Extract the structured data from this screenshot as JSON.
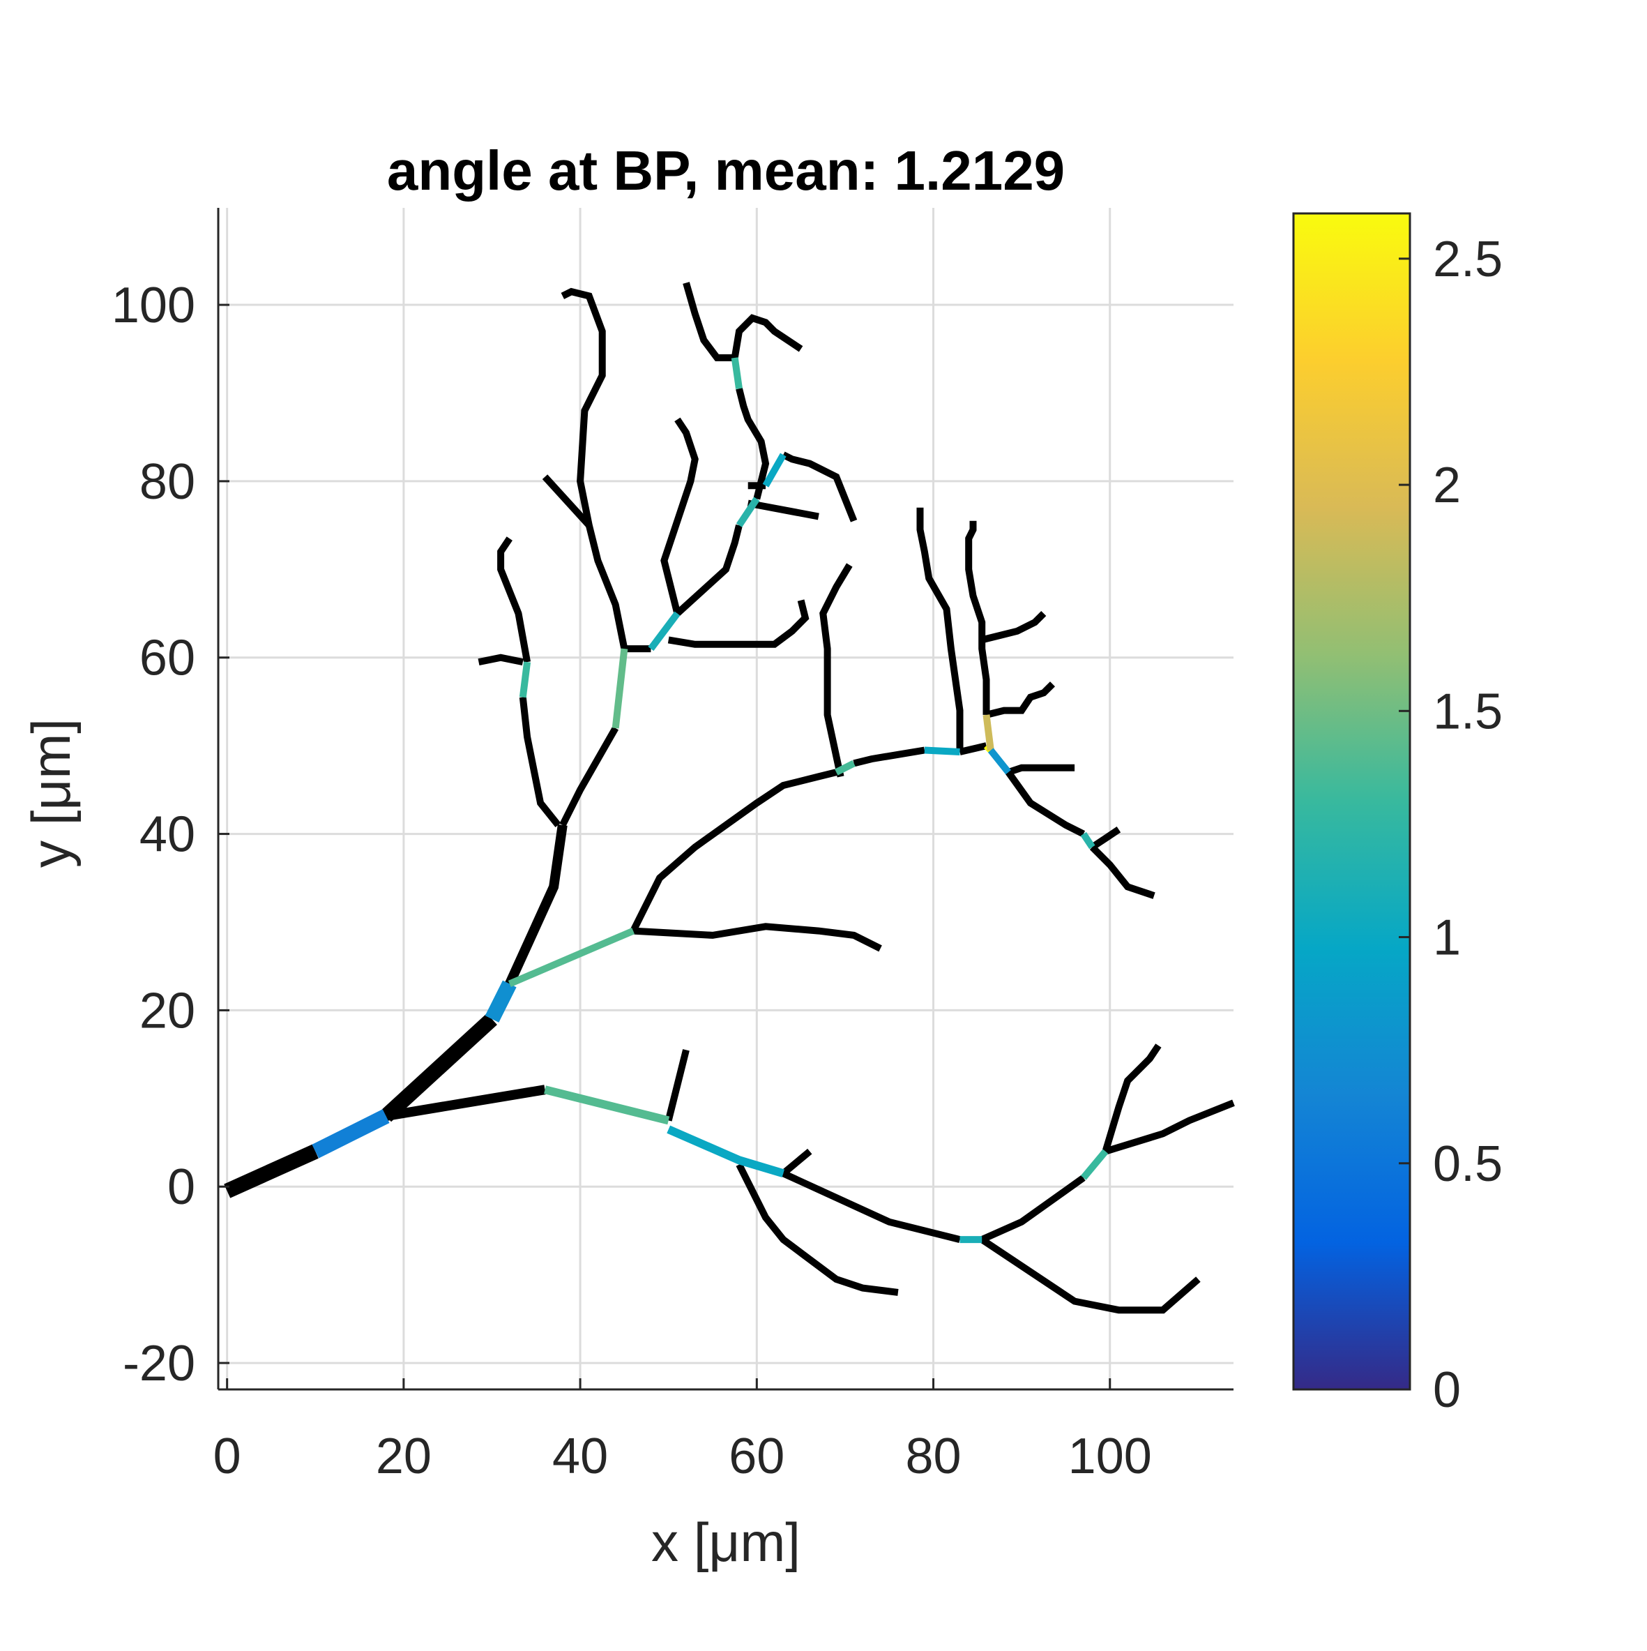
{
  "chart_data": {
    "type": "line",
    "title": "angle at BP, mean: 1.2129",
    "xlabel": "x [μm]",
    "ylabel": "y [μm]",
    "xlim": [
      -1,
      114
    ],
    "ylim": [
      -23,
      111
    ],
    "xticks": [
      0,
      20,
      40,
      60,
      80,
      100
    ],
    "yticks": [
      -20,
      0,
      20,
      40,
      60,
      80,
      100
    ],
    "xtick_labels": [
      "0",
      "20",
      "40",
      "60",
      "80",
      "100"
    ],
    "ytick_labels": [
      "-20",
      "0",
      "20",
      "40",
      "60",
      "80",
      "100"
    ],
    "grid": true,
    "colorbar": {
      "range": [
        0,
        2.6
      ],
      "ticks": [
        0,
        0.5,
        1,
        1.5,
        2,
        2.5
      ],
      "tick_labels": [
        "0",
        "0.5",
        "1",
        "1.5",
        "2",
        "2.5"
      ],
      "colormap": "parula",
      "stops": [
        "#352a87",
        "#0363e1",
        "#1485d4",
        "#06a7c6",
        "#38b99e",
        "#92bf73",
        "#d9ba56",
        "#fcce2e",
        "#f9fb0e"
      ]
    },
    "segments": [
      {
        "points": [
          [
            0,
            -0.5
          ],
          [
            10,
            4
          ]
        ],
        "width": 22,
        "value": null
      },
      {
        "points": [
          [
            10,
            4
          ],
          [
            18,
            8
          ]
        ],
        "width": 22,
        "value": 0.6
      },
      {
        "points": [
          [
            18,
            8
          ],
          [
            30,
            19
          ]
        ],
        "width": 22,
        "value": null
      },
      {
        "points": [
          [
            30,
            19
          ],
          [
            32,
            23
          ]
        ],
        "width": 22,
        "value": 0.75
      },
      {
        "points": [
          [
            32,
            23
          ],
          [
            37,
            34
          ],
          [
            38,
            41
          ]
        ],
        "width": 14,
        "value": null
      },
      {
        "points": [
          [
            38,
            41
          ],
          [
            40,
            45
          ],
          [
            44,
            52
          ]
        ],
        "width": 10,
        "value": null
      },
      {
        "points": [
          [
            44,
            52
          ],
          [
            45,
            61
          ]
        ],
        "width": 10,
        "value": 1.45
      },
      {
        "points": [
          [
            45,
            61
          ],
          [
            44,
            66
          ],
          [
            42,
            71
          ],
          [
            41,
            75
          ]
        ],
        "width": 10,
        "value": null
      },
      {
        "points": [
          [
            41,
            75
          ],
          [
            40,
            80
          ],
          [
            40.5,
            88
          ],
          [
            42.5,
            92
          ],
          [
            42.5,
            97
          ],
          [
            41,
            101
          ],
          [
            39,
            101.5
          ],
          [
            38,
            101
          ]
        ],
        "width": 10,
        "value": null
      },
      {
        "points": [
          [
            41,
            75
          ],
          [
            36,
            80.5
          ]
        ],
        "width": 10,
        "value": null
      },
      {
        "points": [
          [
            37.5,
            41
          ],
          [
            35.5,
            43.5
          ],
          [
            34,
            51
          ],
          [
            33.5,
            55.5
          ]
        ],
        "width": 10,
        "value": null
      },
      {
        "points": [
          [
            33.5,
            55.5
          ],
          [
            34,
            59.5
          ]
        ],
        "width": 10,
        "value": 1.3
      },
      {
        "points": [
          [
            34,
            59.5
          ],
          [
            33,
            65
          ],
          [
            31,
            70
          ],
          [
            31,
            72
          ],
          [
            32,
            73.5
          ]
        ],
        "width": 10,
        "value": null
      },
      {
        "points": [
          [
            33.5,
            59.5
          ],
          [
            31,
            60
          ],
          [
            28.5,
            59.5
          ]
        ],
        "width": 10,
        "value": null
      },
      {
        "points": [
          [
            45,
            61
          ],
          [
            48,
            61
          ]
        ],
        "width": 10,
        "value": null
      },
      {
        "points": [
          [
            48,
            61
          ],
          [
            51,
            65
          ]
        ],
        "width": 10,
        "value": 1.1
      },
      {
        "points": [
          [
            51,
            65
          ],
          [
            49.5,
            71
          ],
          [
            51,
            75.5
          ],
          [
            52.5,
            80
          ],
          [
            53,
            82.5
          ],
          [
            52,
            85.5
          ],
          [
            51,
            87
          ]
        ],
        "width": 10,
        "value": null
      },
      {
        "points": [
          [
            51,
            65
          ],
          [
            56.5,
            70
          ],
          [
            57.5,
            73
          ],
          [
            58,
            75
          ]
        ],
        "width": 10,
        "value": null
      },
      {
        "points": [
          [
            58,
            75
          ],
          [
            60,
            78
          ]
        ],
        "width": 10,
        "value": 1.2
      },
      {
        "points": [
          [
            60,
            78
          ],
          [
            61,
            82
          ],
          [
            60.5,
            84.5
          ],
          [
            59,
            87
          ],
          [
            58.5,
            88.5
          ],
          [
            58,
            90.5
          ]
        ],
        "width": 10,
        "value": null
      },
      {
        "points": [
          [
            58,
            90.5
          ],
          [
            57.5,
            94
          ]
        ],
        "width": 10,
        "value": 1.3
      },
      {
        "points": [
          [
            57.5,
            94
          ],
          [
            55.5,
            94
          ],
          [
            54,
            96
          ],
          [
            53,
            99
          ],
          [
            52,
            102.5
          ]
        ],
        "width": 10,
        "value": null
      },
      {
        "points": [
          [
            57.5,
            94
          ],
          [
            58,
            97
          ],
          [
            59.5,
            98.5
          ],
          [
            61,
            98
          ],
          [
            62,
            97
          ],
          [
            65,
            95
          ]
        ],
        "width": 10,
        "value": null
      },
      {
        "points": [
          [
            59,
            79.5
          ],
          [
            61,
            79.5
          ]
        ],
        "width": 10,
        "value": null
      },
      {
        "points": [
          [
            61,
            79.5
          ],
          [
            63,
            83
          ]
        ],
        "width": 10,
        "value": 1.0
      },
      {
        "points": [
          [
            63,
            83
          ],
          [
            64,
            82.5
          ],
          [
            66,
            82
          ],
          [
            69,
            80.5
          ],
          [
            71,
            75.5
          ]
        ],
        "width": 10,
        "value": null
      },
      {
        "points": [
          [
            59,
            77.5
          ],
          [
            67,
            76
          ]
        ],
        "width": 10,
        "value": null
      },
      {
        "points": [
          [
            50,
            62
          ],
          [
            53,
            61.5
          ],
          [
            57,
            61.5
          ],
          [
            62,
            61.5
          ],
          [
            64,
            63
          ],
          [
            65.5,
            64.5
          ],
          [
            65,
            66.5
          ]
        ],
        "width": 10,
        "value": null
      },
      {
        "points": [
          [
            32,
            23
          ],
          [
            46,
            29
          ]
        ],
        "width": 10,
        "value": 1.4
      },
      {
        "points": [
          [
            46,
            29
          ],
          [
            55,
            28.5
          ],
          [
            61,
            29.5
          ],
          [
            67,
            29
          ],
          [
            71,
            28.5
          ],
          [
            74,
            27
          ]
        ],
        "width": 10,
        "value": null
      },
      {
        "points": [
          [
            46,
            29
          ],
          [
            49,
            35
          ],
          [
            53,
            38.5
          ],
          [
            60,
            43.5
          ],
          [
            63,
            45.5
          ],
          [
            67,
            46.5
          ],
          [
            69,
            47
          ]
        ],
        "width": 10,
        "value": null
      },
      {
        "points": [
          [
            69,
            47
          ],
          [
            71,
            48
          ]
        ],
        "width": 10,
        "value": 1.35
      },
      {
        "points": [
          [
            71,
            48
          ],
          [
            73,
            48.5
          ],
          [
            76,
            49
          ],
          [
            79,
            49.5
          ]
        ],
        "width": 10,
        "value": null
      },
      {
        "points": [
          [
            79,
            49.5
          ],
          [
            83,
            49.3
          ]
        ],
        "width": 10,
        "value": 1.0
      },
      {
        "points": [
          [
            83,
            49.3
          ],
          [
            86,
            50
          ]
        ],
        "width": 10,
        "value": null
      },
      {
        "points": [
          [
            86,
            50
          ],
          [
            86.5,
            49.5
          ]
        ],
        "width": 10,
        "value": 2.6
      },
      {
        "points": [
          [
            69.5,
            46.5
          ],
          [
            68,
            53.5
          ],
          [
            68,
            57.5
          ],
          [
            68,
            61
          ],
          [
            67.5,
            65
          ],
          [
            69,
            68
          ],
          [
            70.5,
            70.5
          ]
        ],
        "width": 10,
        "value": null
      },
      {
        "points": [
          [
            83,
            49.3
          ],
          [
            83,
            54
          ],
          [
            82.5,
            57.5
          ],
          [
            82,
            61
          ],
          [
            81.5,
            65.5
          ],
          [
            79.5,
            69
          ],
          [
            79,
            72
          ],
          [
            78.5,
            74.5
          ],
          [
            78.5,
            77
          ]
        ],
        "width": 10,
        "value": null
      },
      {
        "points": [
          [
            86.5,
            49.5
          ],
          [
            86,
            53.5
          ]
        ],
        "width": 10,
        "value": 1.9
      },
      {
        "points": [
          [
            86,
            53.5
          ],
          [
            86,
            57.5
          ],
          [
            85.5,
            61
          ],
          [
            85.5,
            64
          ],
          [
            84.5,
            67
          ],
          [
            84,
            70
          ],
          [
            84,
            73.5
          ],
          [
            84.5,
            74.5
          ],
          [
            84.5,
            75.5
          ]
        ],
        "width": 10,
        "value": null
      },
      {
        "points": [
          [
            86,
            53.5
          ],
          [
            88,
            54
          ],
          [
            90,
            54
          ],
          [
            91,
            55.5
          ],
          [
            92.5,
            56
          ],
          [
            93.5,
            57
          ]
        ],
        "width": 10,
        "value": null
      },
      {
        "points": [
          [
            85.5,
            62
          ],
          [
            87.5,
            62.5
          ],
          [
            89.5,
            63
          ],
          [
            91.5,
            64
          ],
          [
            92.5,
            65
          ]
        ],
        "width": 10,
        "value": null
      },
      {
        "points": [
          [
            86.5,
            49.5
          ],
          [
            88.5,
            47
          ]
        ],
        "width": 10,
        "value": 0.8
      },
      {
        "points": [
          [
            88.5,
            47
          ],
          [
            90,
            47.5
          ],
          [
            92,
            47.5
          ],
          [
            96,
            47.5
          ]
        ],
        "width": 10,
        "value": null
      },
      {
        "points": [
          [
            88.5,
            47
          ],
          [
            91,
            43.5
          ],
          [
            95,
            41
          ],
          [
            97,
            40
          ]
        ],
        "width": 10,
        "value": null
      },
      {
        "points": [
          [
            97,
            40
          ],
          [
            98,
            38.5
          ]
        ],
        "width": 10,
        "value": 1.2
      },
      {
        "points": [
          [
            98,
            38.5
          ],
          [
            100,
            36.5
          ],
          [
            102,
            34
          ],
          [
            105,
            33
          ]
        ],
        "width": 10,
        "value": null
      },
      {
        "points": [
          [
            98,
            38.5
          ],
          [
            99.5,
            39.5
          ],
          [
            101,
            40.5
          ]
        ],
        "width": 10,
        "value": null
      },
      {
        "points": [
          [
            18,
            8
          ],
          [
            30,
            10
          ],
          [
            36,
            11
          ]
        ],
        "width": 14,
        "value": null
      },
      {
        "points": [
          [
            36,
            11
          ],
          [
            50,
            7.5
          ]
        ],
        "width": 12,
        "value": 1.4
      },
      {
        "points": [
          [
            50,
            7.5
          ],
          [
            52,
            15.5
          ]
        ],
        "width": 10,
        "value": null
      },
      {
        "points": [
          [
            50,
            6.5
          ],
          [
            58,
            3
          ],
          [
            63,
            1.5
          ]
        ],
        "width": 12,
        "value": 1.0
      },
      {
        "points": [
          [
            63,
            1.5
          ],
          [
            66,
            4
          ]
        ],
        "width": 10,
        "value": null
      },
      {
        "points": [
          [
            63,
            1.5
          ],
          [
            75,
            -4
          ],
          [
            83,
            -6
          ]
        ],
        "width": 10,
        "value": null
      },
      {
        "points": [
          [
            83,
            -6
          ],
          [
            85.5,
            -6
          ]
        ],
        "width": 10,
        "value": 1.1
      },
      {
        "points": [
          [
            85.5,
            -6
          ],
          [
            96,
            -13
          ],
          [
            101,
            -14
          ],
          [
            106,
            -14
          ],
          [
            110,
            -10.5
          ]
        ],
        "width": 10,
        "value": null
      },
      {
        "points": [
          [
            85.5,
            -6
          ],
          [
            90,
            -4
          ],
          [
            97,
            1
          ]
        ],
        "width": 10,
        "value": null
      },
      {
        "points": [
          [
            97,
            1
          ],
          [
            99.5,
            4
          ]
        ],
        "width": 10,
        "value": 1.3
      },
      {
        "points": [
          [
            99.5,
            4
          ],
          [
            101,
            9
          ],
          [
            102,
            12
          ],
          [
            104.5,
            14.5
          ],
          [
            105.5,
            16
          ]
        ],
        "width": 10,
        "value": null
      },
      {
        "points": [
          [
            99.5,
            4
          ],
          [
            106,
            6
          ],
          [
            109,
            7.5
          ],
          [
            114,
            9.5
          ]
        ],
        "width": 10,
        "value": null
      },
      {
        "points": [
          [
            58,
            2.5
          ],
          [
            61,
            -3.5
          ],
          [
            63,
            -6
          ],
          [
            65,
            -7.5
          ],
          [
            69,
            -10.5
          ],
          [
            72,
            -11.5
          ],
          [
            76,
            -12
          ]
        ],
        "width": 10,
        "value": null
      }
    ]
  }
}
